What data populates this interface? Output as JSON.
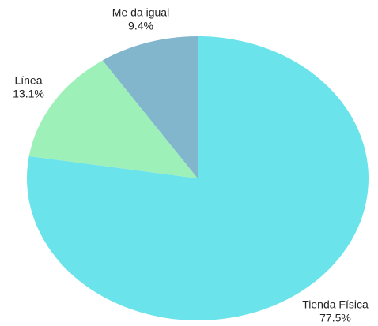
{
  "chart_data": {
    "type": "pie",
    "categories": [
      "Tienda Física",
      "Línea",
      "Me da igual"
    ],
    "values": [
      77.5,
      13.1,
      9.4
    ],
    "value_labels": [
      "77.5%",
      "13.1%",
      "9.4%"
    ],
    "colors": [
      "#6ae4ea",
      "#9ef0b9",
      "#82b6cc"
    ]
  }
}
